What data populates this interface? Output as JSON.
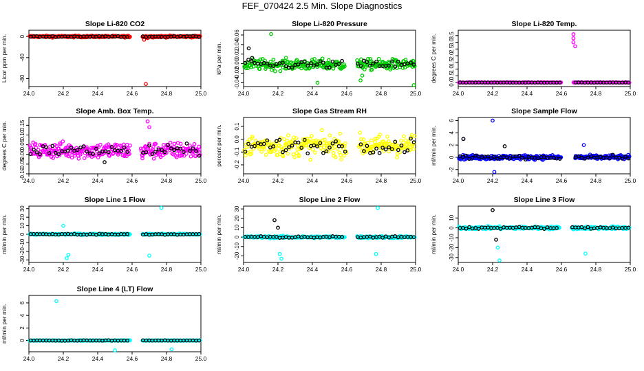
{
  "page": {
    "title": "FEF_070424  2.5 Min. Slope Diagnostics"
  },
  "xaxis_ticks": [
    "24.0",
    "24.2",
    "24.4",
    "24.6",
    "24.8",
    "25.0"
  ],
  "chart_data": [
    {
      "id": "co2",
      "type": "scatter",
      "title": "Slope Li-820 CO2",
      "ylabel": "Licor ppm per min.",
      "color": "#ff0000",
      "xlim": [
        24.0,
        25.0
      ],
      "ylim": [
        -95,
        12
      ],
      "yticks": [
        0,
        -40,
        -80
      ],
      "ytick_labels": [
        "0",
        "-40",
        "-80"
      ],
      "gaps": [
        [
          24.59,
          24.66
        ]
      ],
      "base": 0,
      "noise": 1.2,
      "outliers": [
        [
          24.68,
          -90
        ],
        [
          24.67,
          -6
        ],
        [
          24.69,
          -3
        ]
      ],
      "black_noise": 0.6,
      "black_outliers": []
    },
    {
      "id": "pressure",
      "type": "scatter",
      "title": "Slope Li-820 Pressure",
      "ylabel": "kPa per min.",
      "color": "#00cc00",
      "xlim": [
        24.0,
        25.0
      ],
      "ylim": [
        -0.048,
        0.07
      ],
      "yticks": [
        0.06,
        0.04,
        0.02,
        0,
        -0.02,
        -0.04
      ],
      "ytick_labels": [
        "0.06",
        "0.04",
        "0.02",
        "0.00",
        "-0.02",
        "-0.04"
      ],
      "gaps": [
        [
          24.59,
          24.66
        ]
      ],
      "base": -0.002,
      "noise": 0.008,
      "outliers": [
        [
          24.16,
          0.062
        ],
        [
          24.43,
          -0.04
        ],
        [
          24.99,
          -0.045
        ],
        [
          24.68,
          -0.035
        ],
        [
          24.69,
          -0.025
        ]
      ],
      "black_noise": 0.006,
      "black_outliers": [
        [
          24.03,
          0.032
        ],
        [
          24.05,
          0.012
        ]
      ]
    },
    {
      "id": "temp",
      "type": "scatter",
      "title": "Slope Li-820 Temp.",
      "ylabel": "degrees C per min.",
      "color": "#ff00ff",
      "xlim": [
        24.0,
        25.0
      ],
      "ylim": [
        -0.3,
        3.9
      ],
      "yticks": [
        0,
        0.5,
        1.0,
        1.5,
        2.0,
        2.5,
        3.0,
        3.5
      ],
      "ytick_labels": [
        "0.0",
        "0.5",
        "1.0",
        "1.5",
        "2.0",
        "2.5",
        "3.0",
        "3.5"
      ],
      "gaps": [
        [
          24.6,
          24.67
        ]
      ],
      "base": 0,
      "noise": 0.01,
      "outliers": [
        [
          24.67,
          3.6
        ],
        [
          24.67,
          3.0
        ],
        [
          24.68,
          2.7
        ],
        [
          24.67,
          3.3
        ]
      ],
      "black_noise": 0.005,
      "black_outliers": []
    },
    {
      "id": "ambbox",
      "type": "scatter",
      "title": "Slope Amb. Box Temp.",
      "ylabel": "degrees C per min.",
      "color": "#ff00ff",
      "xlim": [
        24.0,
        25.0
      ],
      "ylim": [
        -0.1,
        0.19
      ],
      "yticks": [
        -0.1,
        -0.05,
        0,
        0.05,
        0.1,
        0.15
      ],
      "ytick_labels": [
        "-0.10",
        "-0.05",
        "0.00",
        "0.05",
        "0.10",
        "0.15"
      ],
      "gaps": [
        [
          24.59,
          24.65
        ]
      ],
      "base": 0.02,
      "noise": 0.03,
      "outliers": [
        [
          24.69,
          0.17
        ],
        [
          24.7,
          0.14
        ],
        [
          24.66,
          -0.02
        ]
      ],
      "black_noise": 0.02,
      "black_outliers": [
        [
          24.44,
          -0.04
        ]
      ]
    },
    {
      "id": "rh",
      "type": "scatter",
      "title": "Slope Gas Stream RH",
      "ylabel": "percent per min.",
      "color": "#ffff00",
      "xlim": [
        24.0,
        25.0
      ],
      "ylim": [
        -0.27,
        0.17
      ],
      "yticks": [
        0.1,
        0,
        -0.1,
        -0.2
      ],
      "ytick_labels": [
        "0.1",
        "0.0",
        "-0.1",
        "-0.2"
      ],
      "gaps": [
        [
          24.6,
          24.67
        ]
      ],
      "base": -0.05,
      "noise": 0.06,
      "outliers": [],
      "black_noise": 0.04,
      "black_outliers": []
    },
    {
      "id": "sample",
      "type": "scatter",
      "title": "Slope Sample Flow",
      "ylabel": "ml/min per min.",
      "color": "#0000ff",
      "xlim": [
        24.0,
        25.0
      ],
      "ylim": [
        -2.7,
        6.5
      ],
      "yticks": [
        -2,
        0,
        2,
        4,
        6
      ],
      "ytick_labels": [
        "-2",
        "0",
        "2",
        "4",
        "6"
      ],
      "gaps": [
        [
          24.6,
          24.68
        ]
      ],
      "base": 0,
      "noise": 0.25,
      "outliers": [
        [
          24.2,
          6.0
        ],
        [
          24.21,
          -2.4
        ],
        [
          24.73,
          2.0
        ],
        [
          24.03,
          3.0
        ]
      ],
      "black_noise": 0.2,
      "black_outliers": [
        [
          24.03,
          3.0
        ],
        [
          24.27,
          1.8
        ]
      ]
    },
    {
      "id": "line1",
      "type": "scatter",
      "title": "Slope Line 1 Flow",
      "ylabel": "ml/min per min.",
      "color": "#00ffff",
      "xlim": [
        24.0,
        25.0
      ],
      "ylim": [
        -33,
        33
      ],
      "yticks": [
        -30,
        -20,
        -10,
        0,
        10,
        20,
        30
      ],
      "ytick_labels": [
        "-30",
        "-20",
        "-10",
        "0",
        "10",
        "20",
        "30"
      ],
      "gaps": [
        [
          24.59,
          24.66
        ]
      ],
      "base": 0,
      "noise": 0.6,
      "outliers": [
        [
          24.22,
          -28
        ],
        [
          24.23,
          -24
        ],
        [
          24.77,
          31
        ],
        [
          24.7,
          -25
        ],
        [
          24.2,
          10
        ]
      ],
      "black_noise": 0.4,
      "black_outliers": []
    },
    {
      "id": "line2",
      "type": "scatter",
      "title": "Slope Line 2 Flow",
      "ylabel": "ml/min per min.",
      "color": "#00ffff",
      "xlim": [
        24.0,
        25.0
      ],
      "ylim": [
        -27,
        33
      ],
      "yticks": [
        -20,
        -10,
        0,
        10,
        20,
        30
      ],
      "ytick_labels": [
        "-20",
        "-10",
        "0",
        "10",
        "20",
        "30"
      ],
      "gaps": [
        [
          24.59,
          24.66
        ]
      ],
      "base": 0,
      "noise": 0.8,
      "outliers": [
        [
          24.22,
          -23
        ],
        [
          24.21,
          -18
        ],
        [
          24.78,
          31
        ],
        [
          24.77,
          -18
        ]
      ],
      "black_noise": 0.6,
      "black_outliers": [
        [
          24.18,
          18
        ],
        [
          24.2,
          10
        ]
      ]
    },
    {
      "id": "line3",
      "type": "scatter",
      "title": "Slope Line 3 Flow",
      "ylabel": "ml/min per min.",
      "color": "#00ffff",
      "xlim": [
        24.0,
        25.0
      ],
      "ylim": [
        -35,
        22
      ],
      "yticks": [
        -30,
        -20,
        -10,
        0,
        10
      ],
      "ytick_labels": [
        "-30",
        "-20",
        "-10",
        "0",
        "10"
      ],
      "gaps": [
        [
          24.59,
          24.66
        ]
      ],
      "base": 0,
      "noise": 1.0,
      "outliers": [
        [
          24.24,
          -33
        ],
        [
          24.74,
          -26
        ],
        [
          24.23,
          -20
        ]
      ],
      "black_noise": 0.7,
      "black_outliers": [
        [
          24.2,
          18
        ],
        [
          24.22,
          -12
        ]
      ]
    },
    {
      "id": "line4",
      "type": "scatter",
      "title": "Slope Line 4 (LT) Flow",
      "ylabel": "ml/min per min.",
      "color": "#00ffff",
      "xlim": [
        24.0,
        25.0
      ],
      "ylim": [
        -1.8,
        7.2
      ],
      "yticks": [
        0,
        2,
        4,
        6
      ],
      "ytick_labels": [
        "0",
        "2",
        "4",
        "6"
      ],
      "gaps": [
        [
          24.59,
          24.66
        ]
      ],
      "base": 0,
      "noise": 0.03,
      "outliers": [
        [
          24.16,
          6.3
        ],
        [
          24.5,
          -1.6
        ],
        [
          24.83,
          -1.4
        ]
      ],
      "black_noise": 0.02,
      "black_outliers": []
    }
  ]
}
